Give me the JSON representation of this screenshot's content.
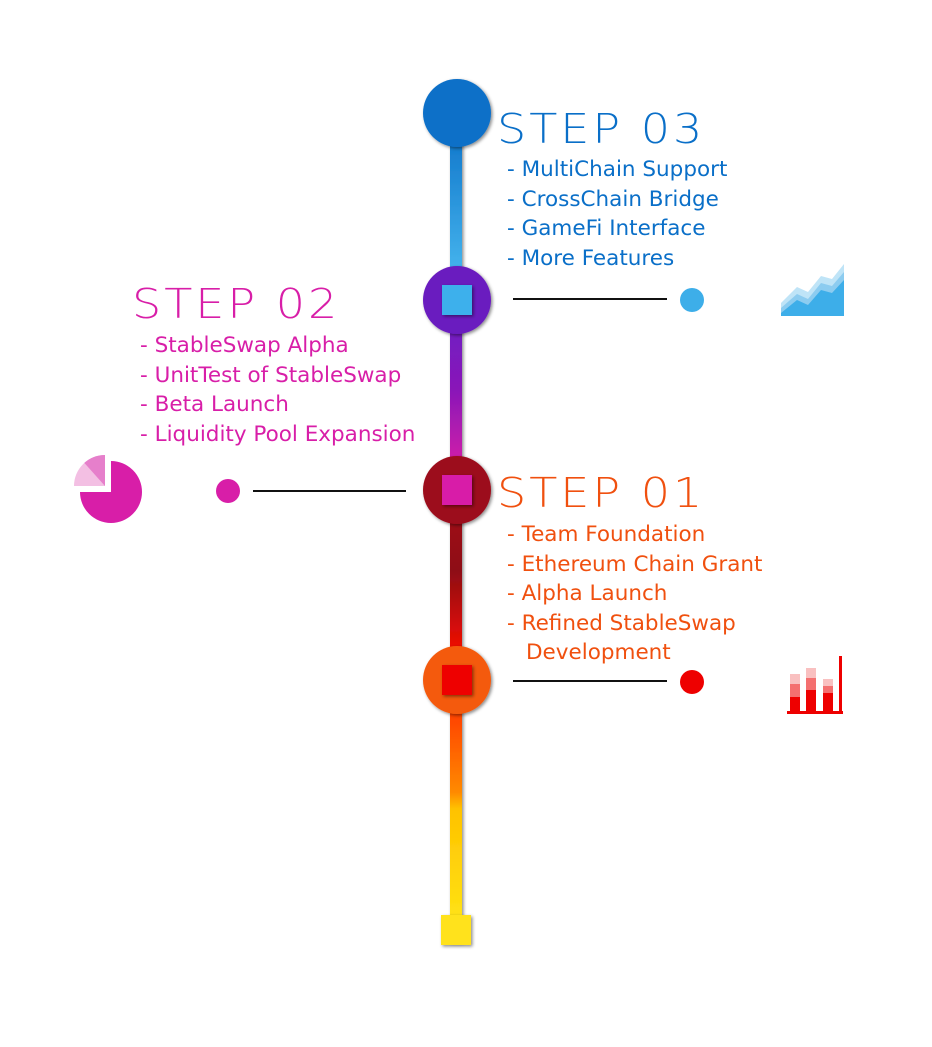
{
  "colors": {
    "step3": "#0a6fc8",
    "step2": "#d81ea8",
    "step1": "#f0500f",
    "accent_blue": "#3daee9",
    "accent_red": "#ee0000",
    "accent_yellow": "#ffe21a"
  },
  "steps": [
    {
      "title": "STEP 03",
      "items": [
        "- MultiChain Support",
        "- CrossChain Bridge",
        "- GameFi Interface",
        "- More Features"
      ],
      "icon": "area-chart-icon"
    },
    {
      "title": "STEP 02",
      "items": [
        "- StableSwap Alpha",
        "- UnitTest of StableSwap",
        "- Beta Launch",
        "- Liquidity Pool Expansion"
      ],
      "icon": "pie-chart-icon"
    },
    {
      "title": "STEP 01",
      "items": [
        "- Team Foundation",
        "- Ethereum Chain Grant",
        "- Alpha Launch",
        "- Refined StableSwap",
        "Development"
      ],
      "icon": "bar-chart-icon"
    }
  ]
}
